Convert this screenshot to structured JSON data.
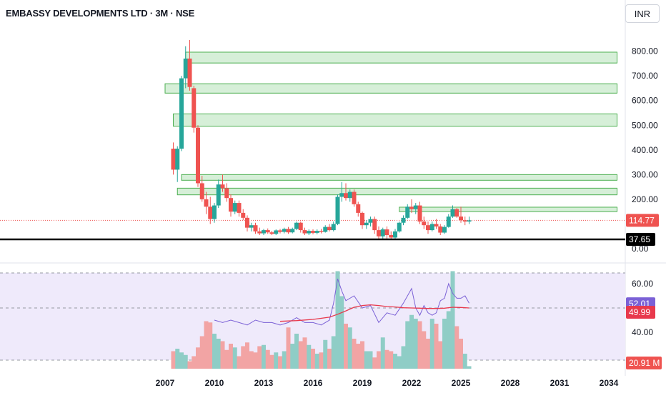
{
  "header": {
    "title": "EMBASSY DEVELOPMENTS LTD · 3M · NSE",
    "currency": "INR"
  },
  "colors": {
    "up": "#26a69a",
    "down": "#ef5350",
    "zone_fill": "#d6efd8",
    "zone_stroke": "#4caf50",
    "vol_up": "#8fcdc6",
    "vol_down": "#f2a4a4",
    "osc_line": "#7b61d6",
    "osc_ma": "#e8394c",
    "osc_bg": "#efeafb",
    "support": "#000000"
  },
  "chart_data": [
    {
      "type": "candlestick",
      "title": "EMBASSY DEVELOPMENTS LTD · 3M · NSE",
      "x_tick_labels": [
        "2007",
        "2010",
        "2013",
        "2016",
        "2019",
        "2022",
        "2025",
        "2028",
        "2031",
        "2034"
      ],
      "y_tick_labels": [
        "800.00",
        "700.00",
        "600.00",
        "500.00",
        "400.00",
        "300.00",
        "200.00",
        "0.00"
      ],
      "ylim": [
        0,
        850
      ],
      "last_price": "114.77",
      "horizontal_line": {
        "value": 37.65,
        "label": "37.65"
      },
      "zones": [
        {
          "start": 2008.25,
          "end": 2034.5,
          "low": 752,
          "high": 796
        },
        {
          "start": 2007.0,
          "end": 2034.5,
          "low": 630,
          "high": 668
        },
        {
          "start": 2007.5,
          "end": 2034.5,
          "low": 496,
          "high": 546
        },
        {
          "start": 2008.0,
          "end": 2034.5,
          "low": 277,
          "high": 300
        },
        {
          "start": 2007.75,
          "end": 2034.5,
          "low": 218,
          "high": 245
        },
        {
          "start": 2021.25,
          "end": 2034.5,
          "low": 150,
          "high": 168
        }
      ],
      "candles": [
        [
          2007.5,
          405,
          430,
          300,
          320
        ],
        [
          2007.75,
          320,
          415,
          270,
          405
        ],
        [
          2008.0,
          405,
          700,
          395,
          690
        ],
        [
          2008.25,
          690,
          820,
          650,
          770
        ],
        [
          2008.5,
          770,
          845,
          640,
          655
        ],
        [
          2008.75,
          650,
          660,
          470,
          490
        ],
        [
          2009.0,
          490,
          500,
          250,
          265
        ],
        [
          2009.25,
          265,
          295,
          190,
          200
        ],
        [
          2009.5,
          200,
          230,
          140,
          170
        ],
        [
          2009.75,
          170,
          210,
          100,
          120
        ],
        [
          2010.0,
          120,
          185,
          105,
          175
        ],
        [
          2010.25,
          175,
          280,
          165,
          260
        ],
        [
          2010.5,
          260,
          300,
          230,
          245
        ],
        [
          2010.75,
          245,
          265,
          190,
          205
        ],
        [
          2011.0,
          205,
          220,
          130,
          150
        ],
        [
          2011.25,
          150,
          195,
          140,
          185
        ],
        [
          2011.5,
          185,
          195,
          130,
          145
        ],
        [
          2011.75,
          145,
          160,
          115,
          125
        ],
        [
          2012.0,
          125,
          135,
          70,
          85
        ],
        [
          2012.25,
          85,
          105,
          70,
          95
        ],
        [
          2012.5,
          95,
          105,
          60,
          70
        ],
        [
          2012.75,
          70,
          85,
          55,
          62
        ],
        [
          2013.0,
          62,
          80,
          55,
          75
        ],
        [
          2013.25,
          75,
          82,
          60,
          66
        ],
        [
          2013.5,
          66,
          72,
          55,
          60
        ],
        [
          2013.75,
          60,
          78,
          55,
          74
        ],
        [
          2014.0,
          74,
          80,
          62,
          68
        ],
        [
          2014.25,
          68,
          85,
          62,
          80
        ],
        [
          2014.5,
          80,
          88,
          60,
          66
        ],
        [
          2014.75,
          66,
          85,
          62,
          80
        ],
        [
          2015.0,
          80,
          110,
          75,
          105
        ],
        [
          2015.25,
          105,
          110,
          65,
          75
        ],
        [
          2015.5,
          75,
          85,
          55,
          62
        ],
        [
          2015.75,
          62,
          78,
          55,
          72
        ],
        [
          2016.0,
          72,
          78,
          58,
          64
        ],
        [
          2016.25,
          64,
          78,
          58,
          72
        ],
        [
          2016.5,
          72,
          80,
          62,
          68
        ],
        [
          2016.75,
          68,
          95,
          65,
          88
        ],
        [
          2017.0,
          88,
          100,
          70,
          75
        ],
        [
          2017.25,
          75,
          110,
          70,
          100
        ],
        [
          2017.5,
          100,
          220,
          95,
          210
        ],
        [
          2017.75,
          210,
          270,
          190,
          225
        ],
        [
          2018.0,
          225,
          265,
          195,
          205
        ],
        [
          2018.25,
          205,
          240,
          190,
          230
        ],
        [
          2018.5,
          230,
          240,
          170,
          180
        ],
        [
          2018.75,
          180,
          190,
          130,
          145
        ],
        [
          2019.0,
          145,
          150,
          80,
          95
        ],
        [
          2019.25,
          95,
          115,
          80,
          105
        ],
        [
          2019.5,
          105,
          130,
          90,
          120
        ],
        [
          2019.75,
          120,
          130,
          60,
          75
        ],
        [
          2020.0,
          75,
          90,
          35,
          50
        ],
        [
          2020.25,
          50,
          85,
          40,
          78
        ],
        [
          2020.5,
          78,
          90,
          40,
          55
        ],
        [
          2020.75,
          55,
          70,
          35,
          45
        ],
        [
          2021.0,
          45,
          80,
          40,
          70
        ],
        [
          2021.25,
          70,
          110,
          65,
          105
        ],
        [
          2021.5,
          105,
          135,
          95,
          125
        ],
        [
          2021.75,
          125,
          180,
          120,
          170
        ],
        [
          2022.0,
          170,
          200,
          145,
          160
        ],
        [
          2022.25,
          160,
          185,
          140,
          175
        ],
        [
          2022.5,
          175,
          190,
          100,
          110
        ],
        [
          2022.75,
          110,
          130,
          80,
          95
        ],
        [
          2023.0,
          95,
          110,
          60,
          75
        ],
        [
          2023.25,
          75,
          110,
          70,
          100
        ],
        [
          2023.5,
          100,
          120,
          80,
          90
        ],
        [
          2023.75,
          90,
          100,
          55,
          65
        ],
        [
          2024.0,
          65,
          95,
          60,
          88
        ],
        [
          2024.25,
          88,
          140,
          85,
          130
        ],
        [
          2024.5,
          130,
          175,
          125,
          160
        ],
        [
          2024.75,
          160,
          165,
          125,
          130
        ],
        [
          2025.0,
          130,
          170,
          105,
          115
        ],
        [
          2025.25,
          115,
          130,
          95,
          110
        ],
        [
          2025.5,
          110,
          130,
          100,
          114.77
        ]
      ]
    },
    {
      "type": "bar+line",
      "series_labels": [
        "52.01",
        "49.99"
      ],
      "y_tick_labels": [
        "60.00",
        "40.00"
      ],
      "volume_label": "20.91 M",
      "volume_bars": [
        [
          2007.5,
          14,
          0
        ],
        [
          2007.75,
          16,
          1
        ],
        [
          2008.0,
          13,
          1
        ],
        [
          2008.25,
          11,
          1
        ],
        [
          2008.5,
          6,
          0
        ],
        [
          2008.75,
          10,
          0
        ],
        [
          2009.0,
          17,
          0
        ],
        [
          2009.25,
          26,
          0
        ],
        [
          2009.5,
          38,
          0
        ],
        [
          2009.75,
          37,
          0
        ],
        [
          2010.0,
          28,
          1
        ],
        [
          2010.25,
          24,
          1
        ],
        [
          2010.5,
          22,
          0
        ],
        [
          2010.75,
          15,
          0
        ],
        [
          2011.0,
          20,
          0
        ],
        [
          2011.25,
          17,
          1
        ],
        [
          2011.5,
          10,
          0
        ],
        [
          2011.75,
          18,
          0
        ],
        [
          2012.0,
          21,
          0
        ],
        [
          2012.25,
          14,
          0
        ],
        [
          2012.5,
          13,
          0
        ],
        [
          2012.75,
          18,
          0
        ],
        [
          2013.0,
          19,
          1
        ],
        [
          2013.25,
          15,
          0
        ],
        [
          2013.5,
          11,
          0
        ],
        [
          2013.75,
          13,
          1
        ],
        [
          2014.0,
          10,
          0
        ],
        [
          2014.25,
          14,
          1
        ],
        [
          2014.5,
          33,
          0
        ],
        [
          2014.75,
          20,
          1
        ],
        [
          2015.0,
          28,
          1
        ],
        [
          2015.25,
          22,
          0
        ],
        [
          2015.5,
          25,
          0
        ],
        [
          2015.75,
          19,
          1
        ],
        [
          2016.0,
          16,
          0
        ],
        [
          2016.25,
          12,
          1
        ],
        [
          2016.5,
          13,
          0
        ],
        [
          2016.75,
          23,
          1
        ],
        [
          2017.0,
          16,
          0
        ],
        [
          2017.25,
          26,
          1
        ],
        [
          2017.5,
          78,
          1
        ],
        [
          2017.75,
          58,
          1
        ],
        [
          2018.0,
          36,
          0
        ],
        [
          2018.25,
          33,
          1
        ],
        [
          2018.5,
          24,
          0
        ],
        [
          2018.75,
          20,
          0
        ],
        [
          2019.0,
          22,
          0
        ],
        [
          2019.25,
          14,
          1
        ],
        [
          2019.5,
          14,
          1
        ],
        [
          2019.75,
          9,
          0
        ],
        [
          2020.0,
          14,
          0
        ],
        [
          2020.25,
          25,
          1
        ],
        [
          2020.5,
          15,
          0
        ],
        [
          2020.75,
          14,
          0
        ],
        [
          2021.0,
          12,
          1
        ],
        [
          2021.25,
          10,
          1
        ],
        [
          2021.5,
          18,
          1
        ],
        [
          2021.75,
          38,
          1
        ],
        [
          2022.0,
          43,
          1
        ],
        [
          2022.25,
          40,
          1
        ],
        [
          2022.5,
          38,
          0
        ],
        [
          2022.75,
          30,
          0
        ],
        [
          2023.0,
          24,
          0
        ],
        [
          2023.25,
          40,
          1
        ],
        [
          2023.5,
          36,
          0
        ],
        [
          2023.75,
          22,
          0
        ],
        [
          2024.0,
          40,
          1
        ],
        [
          2024.25,
          46,
          1
        ],
        [
          2024.5,
          78,
          1
        ],
        [
          2024.75,
          34,
          0
        ],
        [
          2025.0,
          24,
          0
        ],
        [
          2025.25,
          12,
          1
        ],
        [
          2025.5,
          2,
          1
        ]
      ],
      "oscillator_x": [
        2010.0,
        2010.5,
        2011.0,
        2011.5,
        2012.0,
        2012.5,
        2013.0,
        2013.5,
        2014.0,
        2014.5,
        2015.0,
        2015.5,
        2016.0,
        2016.5,
        2017.0,
        2017.25,
        2017.5,
        2017.75,
        2018.0,
        2018.5,
        2019.0,
        2019.5,
        2020.0,
        2020.5,
        2021.0,
        2021.5,
        2022.0,
        2022.25,
        2022.5,
        2022.75,
        2023.0,
        2023.25,
        2023.5,
        2023.75,
        2024.0,
        2024.25,
        2024.5,
        2024.75,
        2025.0,
        2025.25,
        2025.5
      ],
      "oscillator_values": [
        45,
        44,
        45,
        44,
        43,
        45,
        44,
        44,
        43,
        44,
        46,
        44,
        44,
        43,
        45,
        52,
        62,
        57,
        53,
        55,
        50,
        51,
        44,
        48,
        47,
        52,
        58,
        50,
        47,
        51,
        48,
        47,
        48,
        53,
        54,
        60,
        56,
        54,
        54,
        55,
        52.01
      ],
      "ma_x": [
        2014.0,
        2015.0,
        2016.0,
        2017.0,
        2017.5,
        2018.0,
        2018.5,
        2019.0,
        2019.5,
        2020.0,
        2020.5,
        2021.0,
        2021.5,
        2022.0,
        2022.5,
        2023.0,
        2023.5,
        2024.0,
        2024.5,
        2025.0,
        2025.5
      ],
      "ma_values": [
        44.5,
        44.8,
        45.3,
        46.2,
        47.4,
        48.8,
        50.3,
        51.0,
        51.3,
        51.0,
        50.6,
        50.4,
        50.1,
        50.0,
        49.9,
        49.8,
        49.8,
        49.9,
        50.3,
        50.2,
        49.99
      ]
    }
  ]
}
